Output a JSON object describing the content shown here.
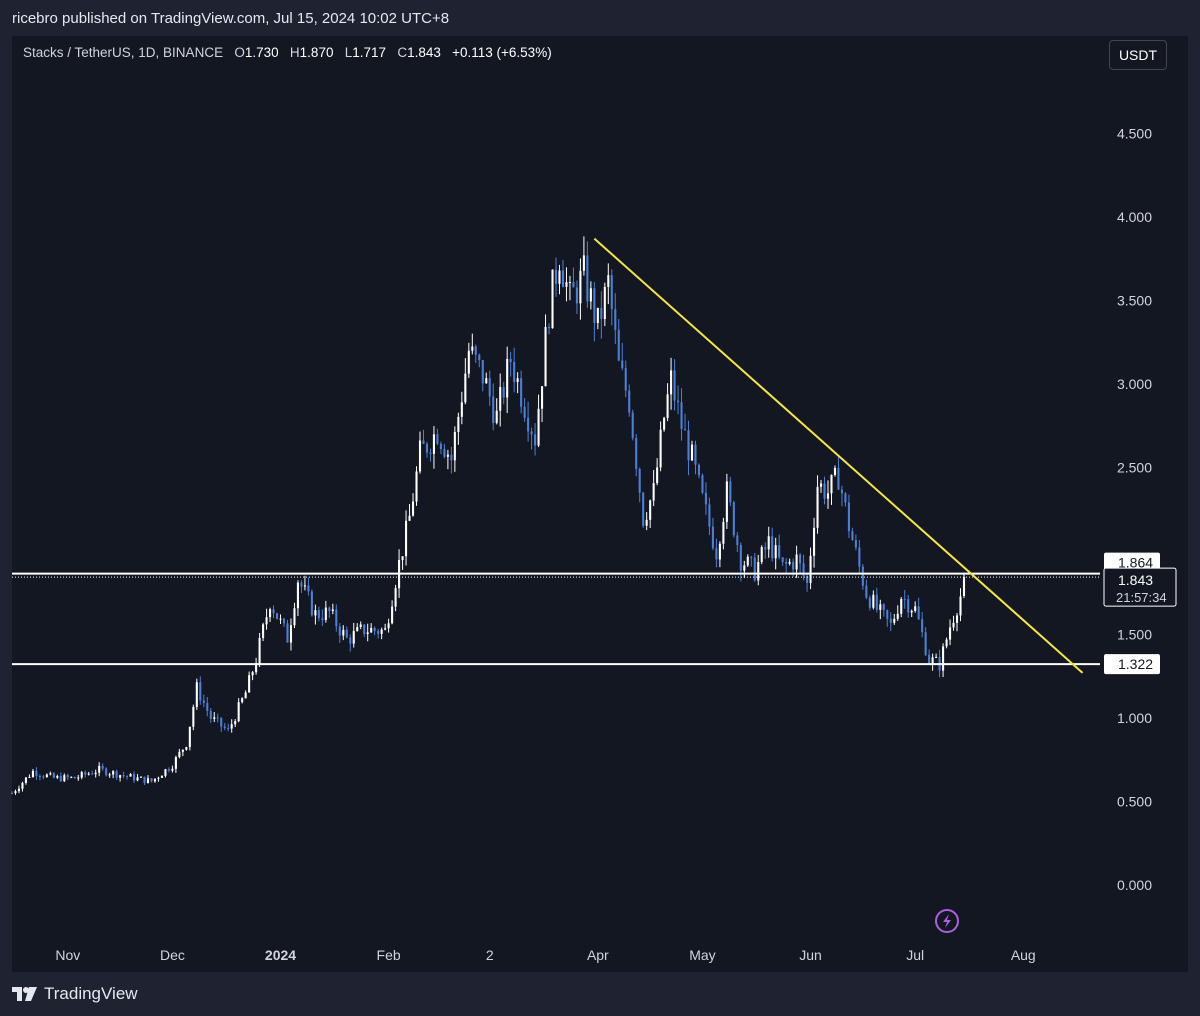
{
  "header": {
    "published_text": "ricebro published on TradingView.com, Jul 15, 2024 10:02 UTC+8"
  },
  "legend": {
    "symbol": "Stacks / TetherUS, 1D, BINANCE",
    "o_label": "O",
    "o_value": "1.730",
    "h_label": "H",
    "h_value": "1.870",
    "l_label": "L",
    "l_value": "1.717",
    "c_label": "C",
    "c_value": "1.843",
    "change": "+0.113 (+6.53%)"
  },
  "currency_button": "USDT",
  "footer": {
    "brand": "TradingView"
  },
  "colors": {
    "up": "#ffffff",
    "down": "#4d7fd6",
    "trendline": "#f7e545",
    "background": "#131722",
    "axis_text": "#d1d4dc"
  },
  "chart_data": {
    "type": "candlestick",
    "title": "",
    "xlabel": "",
    "ylabel": "",
    "ylim": [
      -0.3,
      4.85
    ],
    "y_ticks": [
      "0.000",
      "0.500",
      "1.000",
      "1.500",
      "2.500",
      "3.000",
      "3.500",
      "4.000",
      "4.500"
    ],
    "x_ticks": [
      {
        "label": "Nov",
        "date": "2023-11-01"
      },
      {
        "label": "Dec",
        "date": "2023-12-01"
      },
      {
        "label": "2024",
        "date": "2024-01-01"
      },
      {
        "label": "Feb",
        "date": "2024-02-01"
      },
      {
        "label": "2",
        "date": "2024-03-01"
      },
      {
        "label": "Apr",
        "date": "2024-04-01"
      },
      {
        "label": "May",
        "date": "2024-05-01"
      },
      {
        "label": "Jun",
        "date": "2024-06-01"
      },
      {
        "label": "Jul",
        "date": "2024-07-01"
      },
      {
        "label": "Aug",
        "date": "2024-08-01"
      }
    ],
    "x_start": "2023-10-16",
    "x_end": "2024-08-23",
    "price_path": [
      [
        "2023-10-16",
        0.55
      ],
      [
        "2023-10-22",
        0.68
      ],
      [
        "2023-10-28",
        0.64
      ],
      [
        "2023-11-03",
        0.64
      ],
      [
        "2023-11-10",
        0.69
      ],
      [
        "2023-11-18",
        0.65
      ],
      [
        "2023-11-25",
        0.62
      ],
      [
        "2023-12-01",
        0.72
      ],
      [
        "2023-12-05",
        0.85
      ],
      [
        "2023-12-08",
        1.18
      ],
      [
        "2023-12-12",
        1.0
      ],
      [
        "2023-12-17",
        0.92
      ],
      [
        "2023-12-22",
        1.15
      ],
      [
        "2023-12-25",
        1.35
      ],
      [
        "2023-12-29",
        1.7
      ],
      [
        "2024-01-03",
        1.48
      ],
      [
        "2024-01-06",
        1.83
      ],
      [
        "2024-01-11",
        1.62
      ],
      [
        "2024-01-15",
        1.63
      ],
      [
        "2024-01-20",
        1.47
      ],
      [
        "2024-01-25",
        1.53
      ],
      [
        "2024-01-31",
        1.52
      ],
      [
        "2024-02-03",
        1.83
      ],
      [
        "2024-02-07",
        2.2
      ],
      [
        "2024-02-10",
        2.58
      ],
      [
        "2024-02-15",
        2.72
      ],
      [
        "2024-02-19",
        2.55
      ],
      [
        "2024-02-24",
        3.2
      ],
      [
        "2024-02-28",
        3.05
      ],
      [
        "2024-03-03",
        2.8
      ],
      [
        "2024-03-07",
        3.15
      ],
      [
        "2024-03-11",
        2.88
      ],
      [
        "2024-03-14",
        2.68
      ],
      [
        "2024-03-18",
        3.45
      ],
      [
        "2024-03-21",
        3.78
      ],
      [
        "2024-03-24",
        3.5
      ],
      [
        "2024-03-28",
        3.65
      ],
      [
        "2024-04-01",
        3.35
      ],
      [
        "2024-04-04",
        3.6
      ],
      [
        "2024-04-07",
        3.1
      ],
      [
        "2024-04-10",
        2.9
      ],
      [
        "2024-04-12",
        2.55
      ],
      [
        "2024-04-14",
        2.2
      ],
      [
        "2024-04-17",
        2.35
      ],
      [
        "2024-04-20",
        2.8
      ],
      [
        "2024-04-22",
        3.02
      ],
      [
        "2024-04-25",
        2.75
      ],
      [
        "2024-04-28",
        2.55
      ],
      [
        "2024-05-01",
        2.3
      ],
      [
        "2024-05-05",
        2.0
      ],
      [
        "2024-05-08",
        2.35
      ],
      [
        "2024-05-12",
        1.95
      ],
      [
        "2024-05-16",
        1.88
      ],
      [
        "2024-05-20",
        2.05
      ],
      [
        "2024-05-24",
        1.9
      ],
      [
        "2024-05-28",
        1.95
      ],
      [
        "2024-05-31",
        1.8
      ],
      [
        "2024-06-03",
        2.4
      ],
      [
        "2024-06-06",
        2.35
      ],
      [
        "2024-06-09",
        2.45
      ],
      [
        "2024-06-12",
        2.15
      ],
      [
        "2024-06-15",
        1.9
      ],
      [
        "2024-06-17",
        1.75
      ],
      [
        "2024-06-20",
        1.65
      ],
      [
        "2024-06-24",
        1.55
      ],
      [
        "2024-06-27",
        1.73
      ],
      [
        "2024-07-01",
        1.65
      ],
      [
        "2024-07-05",
        1.35
      ],
      [
        "2024-07-08",
        1.32
      ],
      [
        "2024-07-11",
        1.55
      ],
      [
        "2024-07-14",
        1.73
      ],
      [
        "2024-07-15",
        1.843
      ]
    ],
    "last_candle": {
      "date": "2024-07-15",
      "open": 1.73,
      "high": 1.87,
      "low": 1.717,
      "close": 1.843
    },
    "horizontal_levels": [
      {
        "label": "1.864",
        "value": 1.864
      },
      {
        "label": "1.322",
        "value": 1.322
      }
    ],
    "price_tag": {
      "label": "1.843",
      "countdown": "21:57:34",
      "value": 1.843
    },
    "trendline": {
      "start": {
        "date": "2024-03-31",
        "value": 3.87
      },
      "end": {
        "date": "2024-08-18",
        "value": 1.27
      }
    }
  }
}
